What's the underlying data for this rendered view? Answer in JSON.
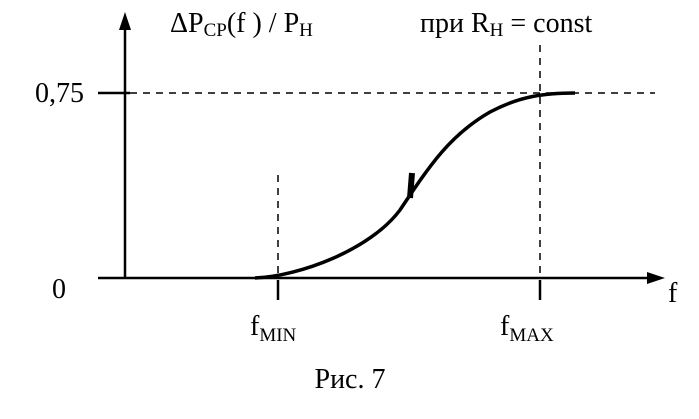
{
  "y_axis_label": {
    "main": "ΔP",
    "sub1": "CP",
    "mid": "(f ) / P",
    "sub2": "H"
  },
  "condition": {
    "main": "при R",
    "sub": "H",
    "rest": " = const"
  },
  "y_ticks": [
    "0,75",
    "0"
  ],
  "x_axis_label": "f",
  "x_ticks": [
    {
      "main": "f",
      "sub": "MIN"
    },
    {
      "main": "f",
      "sub": "MAX"
    }
  ],
  "caption": "Рис. 7"
}
